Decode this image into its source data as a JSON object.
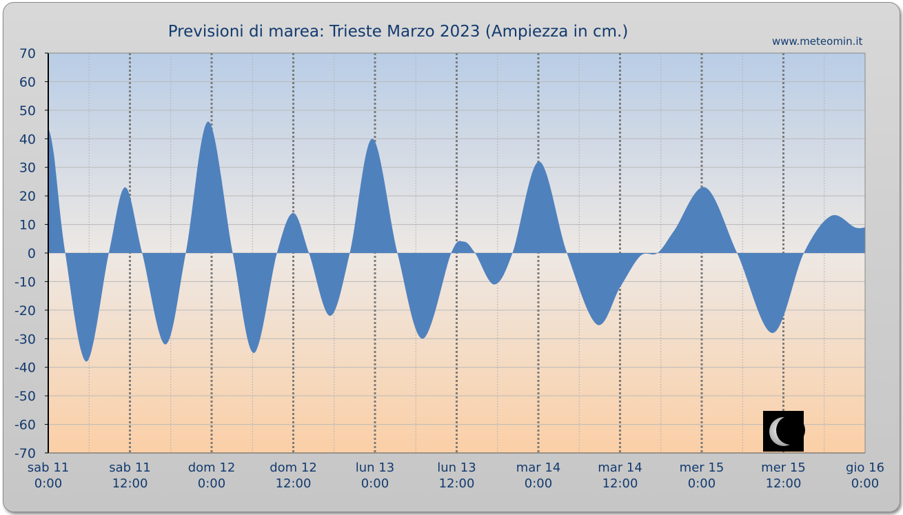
{
  "site": "www.meteomin.it",
  "chart_data": {
    "type": "area",
    "title": "Previsioni di marea: Trieste Marzo 2023 (Ampiezza in cm.)",
    "xlabel": "",
    "ylabel": "",
    "ylim": [
      -70,
      70
    ],
    "yticks": [
      70,
      60,
      50,
      40,
      30,
      20,
      10,
      0,
      -10,
      -20,
      -30,
      -40,
      -50,
      -60,
      -70
    ],
    "xlim_hours": [
      0,
      120
    ],
    "xticks": [
      {
        "day": "sab",
        "date": "11",
        "time": "0:00",
        "hour": 0
      },
      {
        "day": "sab",
        "date": "11",
        "time": "12:00",
        "hour": 12
      },
      {
        "day": "dom",
        "date": "12",
        "time": "0:00",
        "hour": 24
      },
      {
        "day": "dom",
        "date": "12",
        "time": "12:00",
        "hour": 36
      },
      {
        "day": "lun",
        "date": "13",
        "time": "0:00",
        "hour": 48
      },
      {
        "day": "lun",
        "date": "13",
        "time": "12:00",
        "hour": 60
      },
      {
        "day": "mar",
        "date": "14",
        "time": "0:00",
        "hour": 72
      },
      {
        "day": "mar",
        "date": "14",
        "time": "12:00",
        "hour": 84
      },
      {
        "day": "mer",
        "date": "15",
        "time": "0:00",
        "hour": 96
      },
      {
        "day": "mer",
        "date": "15",
        "time": "12:00",
        "hour": 108
      },
      {
        "day": "gio",
        "date": "16",
        "time": "0:00",
        "hour": 120
      }
    ],
    "x_unit": "hours from sab 11 0:00",
    "points": [
      [
        0,
        44
      ],
      [
        0.8,
        35
      ],
      [
        2.5,
        0
      ],
      [
        5.6,
        -38
      ],
      [
        8.9,
        0
      ],
      [
        11.3,
        23
      ],
      [
        13.8,
        0
      ],
      [
        17.2,
        -32
      ],
      [
        20.2,
        0
      ],
      [
        23.5,
        46
      ],
      [
        27.1,
        0
      ],
      [
        30.2,
        -35
      ],
      [
        33.6,
        0
      ],
      [
        36.0,
        14
      ],
      [
        38.3,
        0
      ],
      [
        41.4,
        -22
      ],
      [
        44.3,
        0
      ],
      [
        47.6,
        40
      ],
      [
        51.3,
        0
      ],
      [
        55.0,
        -30
      ],
      [
        59.2,
        0
      ],
      [
        61.0,
        4
      ],
      [
        62.7,
        0
      ],
      [
        65.5,
        -11
      ],
      [
        68.2,
        0
      ],
      [
        72.1,
        32
      ],
      [
        76.2,
        0
      ],
      [
        80.6,
        -25
      ],
      [
        84.0,
        -12
      ],
      [
        87.0,
        -1
      ],
      [
        89.5,
        0
      ],
      [
        92.0,
        8
      ],
      [
        96.5,
        23
      ],
      [
        101.2,
        0
      ],
      [
        106.4,
        -28
      ],
      [
        111.0,
        0
      ],
      [
        115.0,
        13
      ],
      [
        118.5,
        9
      ],
      [
        120,
        9
      ]
    ],
    "fill_color": "#4f81bd",
    "background_top_color": "#b9cde6",
    "background_bottom_color": "#fbcfa6",
    "grid": true,
    "moon_phase_icon": "waning-crescent-moon-icon"
  }
}
